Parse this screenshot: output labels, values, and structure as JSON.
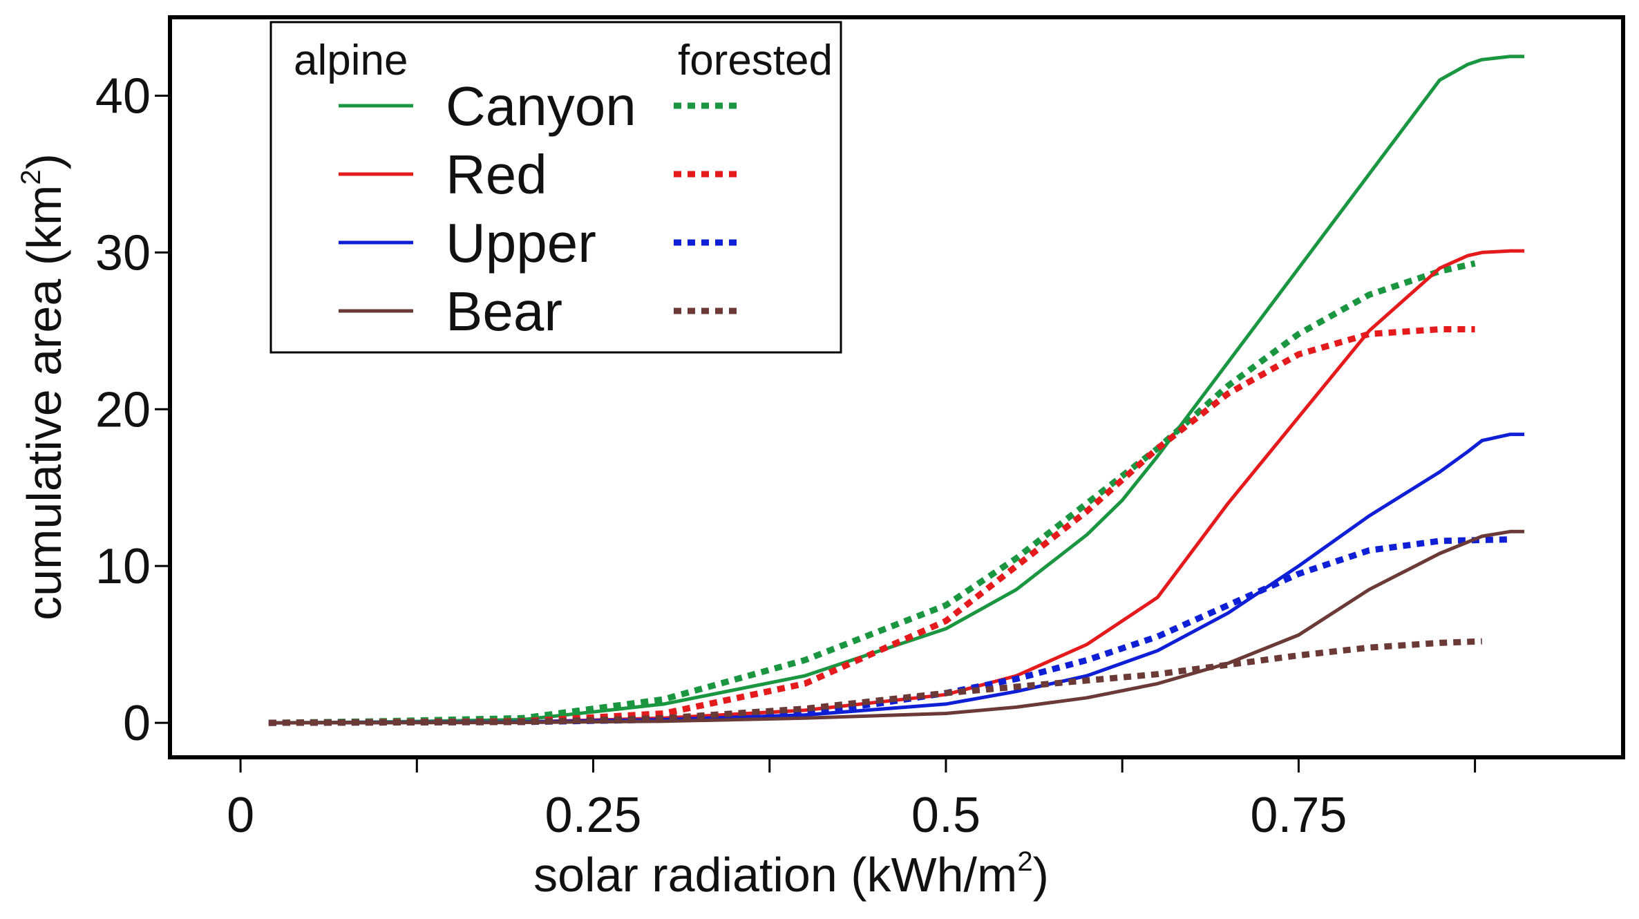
{
  "chart_data": {
    "type": "line",
    "title": "",
    "xlabel": "solar radiation (kWh/m",
    "xlabel_sup": "2",
    "xlabel_end": ")",
    "ylabel": "cumulative area (km",
    "ylabel_sup": "2",
    "ylabel_end": ")",
    "xlim": [
      -0.05,
      0.98
    ],
    "ylim": [
      -2.2,
      45
    ],
    "x_ticks": [
      0,
      0.125,
      0.25,
      0.375,
      0.5,
      0.625,
      0.75,
      0.875
    ],
    "x_tick_labels": [
      {
        "value": 0,
        "label": "0"
      },
      {
        "value": 0.25,
        "label": "0.25"
      },
      {
        "value": 0.5,
        "label": "0.5"
      },
      {
        "value": 0.75,
        "label": "0.75"
      }
    ],
    "y_tick_labels": [
      {
        "value": 0,
        "label": "0"
      },
      {
        "value": 10,
        "label": "10"
      },
      {
        "value": 20,
        "label": "20"
      },
      {
        "value": 30,
        "label": "30"
      },
      {
        "value": 40,
        "label": "40"
      }
    ],
    "grid": false,
    "legend": {
      "placement": "top-left",
      "header_left": "alpine",
      "header_right": "forested",
      "entries": [
        "Canyon",
        "Red",
        "Upper",
        "Bear"
      ]
    },
    "series": [
      {
        "name": "Canyon",
        "group": "alpine",
        "style": "solid",
        "color": "#1a9641",
        "x": [
          0.02,
          0.1,
          0.2,
          0.3,
          0.4,
          0.5,
          0.55,
          0.6,
          0.625,
          0.65,
          0.7,
          0.75,
          0.8,
          0.85,
          0.87,
          0.88,
          0.9,
          0.91
        ],
        "y": [
          0,
          0.05,
          0.2,
          1.2,
          3.0,
          6.0,
          8.5,
          12.0,
          14.2,
          17.0,
          23.0,
          29.0,
          35.0,
          41.0,
          42.0,
          42.3,
          42.5,
          42.5
        ]
      },
      {
        "name": "Canyon",
        "group": "forested",
        "style": "dotted",
        "color": "#1a9641",
        "x": [
          0.02,
          0.1,
          0.2,
          0.3,
          0.4,
          0.5,
          0.55,
          0.6,
          0.65,
          0.7,
          0.75,
          0.8,
          0.85,
          0.875
        ],
        "y": [
          0,
          0.1,
          0.3,
          1.5,
          4.0,
          7.5,
          10.5,
          14.0,
          17.5,
          21.5,
          24.8,
          27.3,
          28.8,
          29.3
        ]
      },
      {
        "name": "Red",
        "group": "alpine",
        "style": "solid",
        "color": "#e41a1c",
        "x": [
          0.02,
          0.2,
          0.3,
          0.4,
          0.5,
          0.55,
          0.6,
          0.65,
          0.7,
          0.75,
          0.8,
          0.85,
          0.87,
          0.88,
          0.9,
          0.91
        ],
        "y": [
          0,
          0.05,
          0.3,
          0.8,
          1.8,
          3.0,
          5.0,
          8.0,
          14.0,
          19.5,
          25.0,
          29.0,
          29.8,
          30.0,
          30.1,
          30.1
        ]
      },
      {
        "name": "Red",
        "group": "forested",
        "style": "dotted",
        "color": "#e41a1c",
        "x": [
          0.02,
          0.2,
          0.3,
          0.4,
          0.5,
          0.55,
          0.6,
          0.65,
          0.7,
          0.75,
          0.8,
          0.85,
          0.875
        ],
        "y": [
          0,
          0.1,
          0.6,
          2.5,
          6.5,
          10.0,
          13.5,
          17.5,
          21.0,
          23.5,
          24.8,
          25.1,
          25.1
        ]
      },
      {
        "name": "Upper",
        "group": "alpine",
        "style": "solid",
        "color": "#0f1fd6",
        "x": [
          0.02,
          0.2,
          0.3,
          0.4,
          0.5,
          0.55,
          0.6,
          0.65,
          0.7,
          0.75,
          0.8,
          0.85,
          0.87,
          0.88,
          0.9,
          0.91
        ],
        "y": [
          0,
          0.05,
          0.2,
          0.5,
          1.2,
          2.0,
          3.0,
          4.6,
          7.0,
          10.0,
          13.2,
          16.0,
          17.3,
          18.0,
          18.4,
          18.4
        ]
      },
      {
        "name": "Upper",
        "group": "forested",
        "style": "dotted",
        "color": "#0f1fd6",
        "x": [
          0.02,
          0.2,
          0.3,
          0.4,
          0.45,
          0.5,
          0.55,
          0.6,
          0.65,
          0.7,
          0.75,
          0.8,
          0.85,
          0.9
        ],
        "y": [
          0,
          0.05,
          0.2,
          0.7,
          1.2,
          1.9,
          2.8,
          4.0,
          5.5,
          7.5,
          9.5,
          11.0,
          11.6,
          11.7
        ]
      },
      {
        "name": "Bear",
        "group": "alpine",
        "style": "solid",
        "color": "#6b3a36",
        "x": [
          0.02,
          0.2,
          0.3,
          0.4,
          0.5,
          0.55,
          0.6,
          0.65,
          0.7,
          0.75,
          0.8,
          0.85,
          0.88,
          0.9,
          0.91
        ],
        "y": [
          0,
          0.02,
          0.1,
          0.3,
          0.6,
          1.0,
          1.6,
          2.5,
          3.8,
          5.6,
          8.5,
          10.8,
          11.9,
          12.2,
          12.2
        ]
      },
      {
        "name": "Bear",
        "group": "forested",
        "style": "dotted",
        "color": "#6b3a36",
        "x": [
          0.02,
          0.2,
          0.3,
          0.4,
          0.45,
          0.5,
          0.55,
          0.6,
          0.65,
          0.7,
          0.75,
          0.8,
          0.85,
          0.88
        ],
        "y": [
          0,
          0.05,
          0.3,
          0.9,
          1.4,
          1.9,
          2.3,
          2.7,
          3.1,
          3.7,
          4.3,
          4.8,
          5.1,
          5.2
        ]
      }
    ]
  }
}
